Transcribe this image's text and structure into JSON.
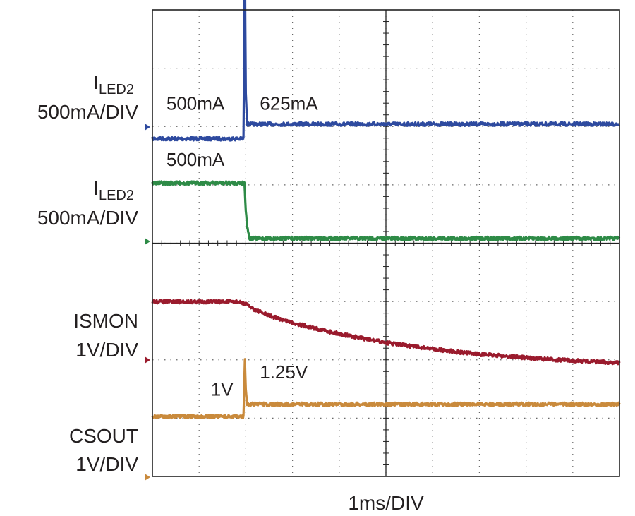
{
  "chart_data": {
    "type": "line",
    "title": "",
    "x_unit": "ms",
    "x_range": [
      0,
      10
    ],
    "divisions": {
      "x": 10,
      "y": 8
    },
    "xlabel": "1ms/DIV",
    "grid": true,
    "series": [
      {
        "name_main": "I",
        "name_sub": "LED2",
        "scale": "500mA/DIV",
        "color": "#2e4a9f",
        "x": [
          0,
          1.95,
          1.98,
          2.0,
          2.03,
          2.08,
          2.15,
          10
        ],
        "div": [
          -0.2,
          -0.2,
          2.9,
          0.6,
          0.05,
          0.05,
          0.05,
          0.05
        ],
        "annotations": [
          {
            "text": "500mA",
            "x": 0.3,
            "div": 0.2
          },
          {
            "text": "625mA",
            "x": 2.3,
            "div": 0.2
          }
        ]
      },
      {
        "name_main": "I",
        "name_sub": "LED2",
        "scale": "500mA/DIV",
        "color": "#2e8b47",
        "x": [
          0,
          1.97,
          2.0,
          2.03,
          2.08,
          10
        ],
        "div": [
          1.0,
          1.0,
          0.55,
          0.25,
          0.05,
          0.05
        ],
        "annotations": [
          {
            "text": "500mA",
            "x": 0.3,
            "div": 1.2
          }
        ]
      },
      {
        "name": "ISMON",
        "scale": "1V/DIV",
        "color": "#9a1b2d",
        "x": [
          0,
          1.8,
          2.0,
          2.2,
          2.5,
          3.0,
          3.5,
          4.0,
          4.5,
          5.0,
          5.5,
          6.0,
          6.5,
          7.0,
          7.5,
          8.0,
          8.5,
          9.0,
          9.5,
          10
        ],
        "div": [
          1.0,
          1.0,
          0.96,
          0.86,
          0.76,
          0.64,
          0.54,
          0.45,
          0.37,
          0.3,
          0.24,
          0.19,
          0.14,
          0.1,
          0.07,
          0.04,
          0.01,
          -0.01,
          -0.03,
          -0.05
        ]
      },
      {
        "name": "CSOUT",
        "scale": "1V/DIV",
        "color": "#c98a3c",
        "x": [
          0,
          1.95,
          1.98,
          2.0,
          2.03,
          2.08,
          10
        ],
        "div": [
          1.04,
          1.04,
          2.0,
          1.5,
          1.25,
          1.25,
          1.25
        ],
        "annotations": [
          {
            "text": "1V",
            "x": 1.25,
            "div": 1.3
          },
          {
            "text": "1.25V",
            "x": 2.3,
            "div": 1.6
          }
        ]
      }
    ]
  }
}
